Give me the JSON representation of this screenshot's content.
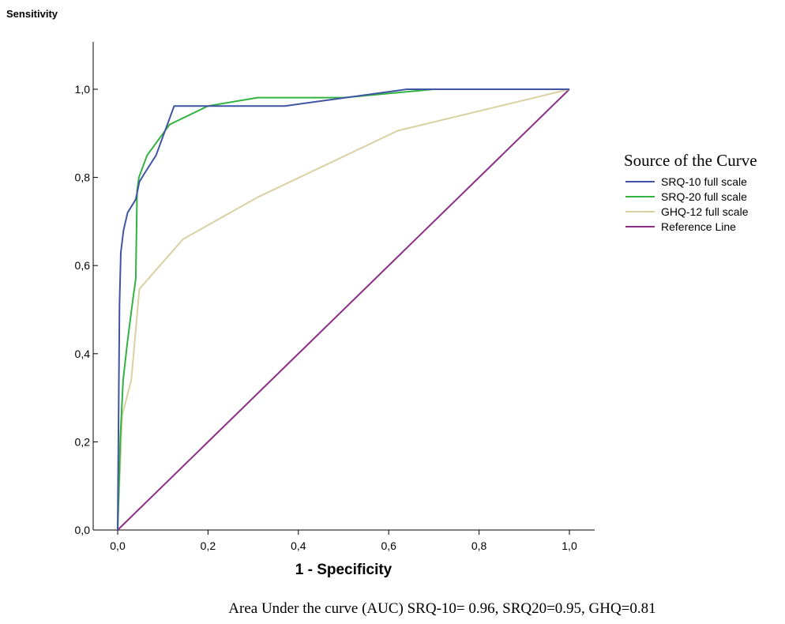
{
  "chart_data": {
    "type": "line",
    "title": "",
    "xlabel": "1 - Specificity",
    "ylabel": "Sensitivity",
    "xlim": [
      0,
      1
    ],
    "ylim": [
      0,
      1
    ],
    "x_ticks": [
      "0,0",
      "0,2",
      "0,4",
      "0,6",
      "0,8",
      "1,0"
    ],
    "y_ticks": [
      "0,0",
      "0,2",
      "0,4",
      "0,6",
      "0,8",
      "1,0"
    ],
    "grid": false,
    "legend_position": "right",
    "legend_title": "Source of the Curve",
    "caption": "Area Under the curve (AUC)  SRQ-10= 0.96, SRQ20=0.95, GHQ=0.81",
    "series": [
      {
        "name": "SRQ-10 full scale",
        "color": "#3f54a3",
        "x": [
          0.0,
          0.004,
          0.007,
          0.013,
          0.022,
          0.04,
          0.048,
          0.06,
          0.085,
          0.125,
          0.19,
          0.37,
          0.64,
          1.0
        ],
        "y": [
          0.0,
          0.51,
          0.63,
          0.68,
          0.72,
          0.75,
          0.79,
          0.81,
          0.85,
          0.962,
          0.962,
          0.962,
          1.0,
          1.0
        ],
        "line_width": 2
      },
      {
        "name": "SRQ-20 full scale",
        "color": "#32b240",
        "x": [
          0.0,
          0.006,
          0.012,
          0.022,
          0.032,
          0.04,
          0.043,
          0.047,
          0.065,
          0.115,
          0.2,
          0.31,
          0.5,
          0.7,
          1.0
        ],
        "y": [
          0.0,
          0.21,
          0.34,
          0.43,
          0.51,
          0.57,
          0.77,
          0.8,
          0.85,
          0.92,
          0.962,
          0.981,
          0.981,
          1.0,
          1.0
        ],
        "line_width": 2
      },
      {
        "name": "GHQ-12 full scale",
        "color": "#d9d1a3",
        "x": [
          0.0,
          0.01,
          0.03,
          0.048,
          0.145,
          0.31,
          0.62,
          1.0
        ],
        "y": [
          0.0,
          0.26,
          0.34,
          0.547,
          0.66,
          0.755,
          0.906,
          1.0
        ],
        "line_width": 2
      },
      {
        "name": "Reference Line",
        "color": "#8a2f85",
        "x": [
          0.0,
          1.0
        ],
        "y": [
          0.0,
          1.0
        ],
        "line_width": 2
      }
    ]
  }
}
